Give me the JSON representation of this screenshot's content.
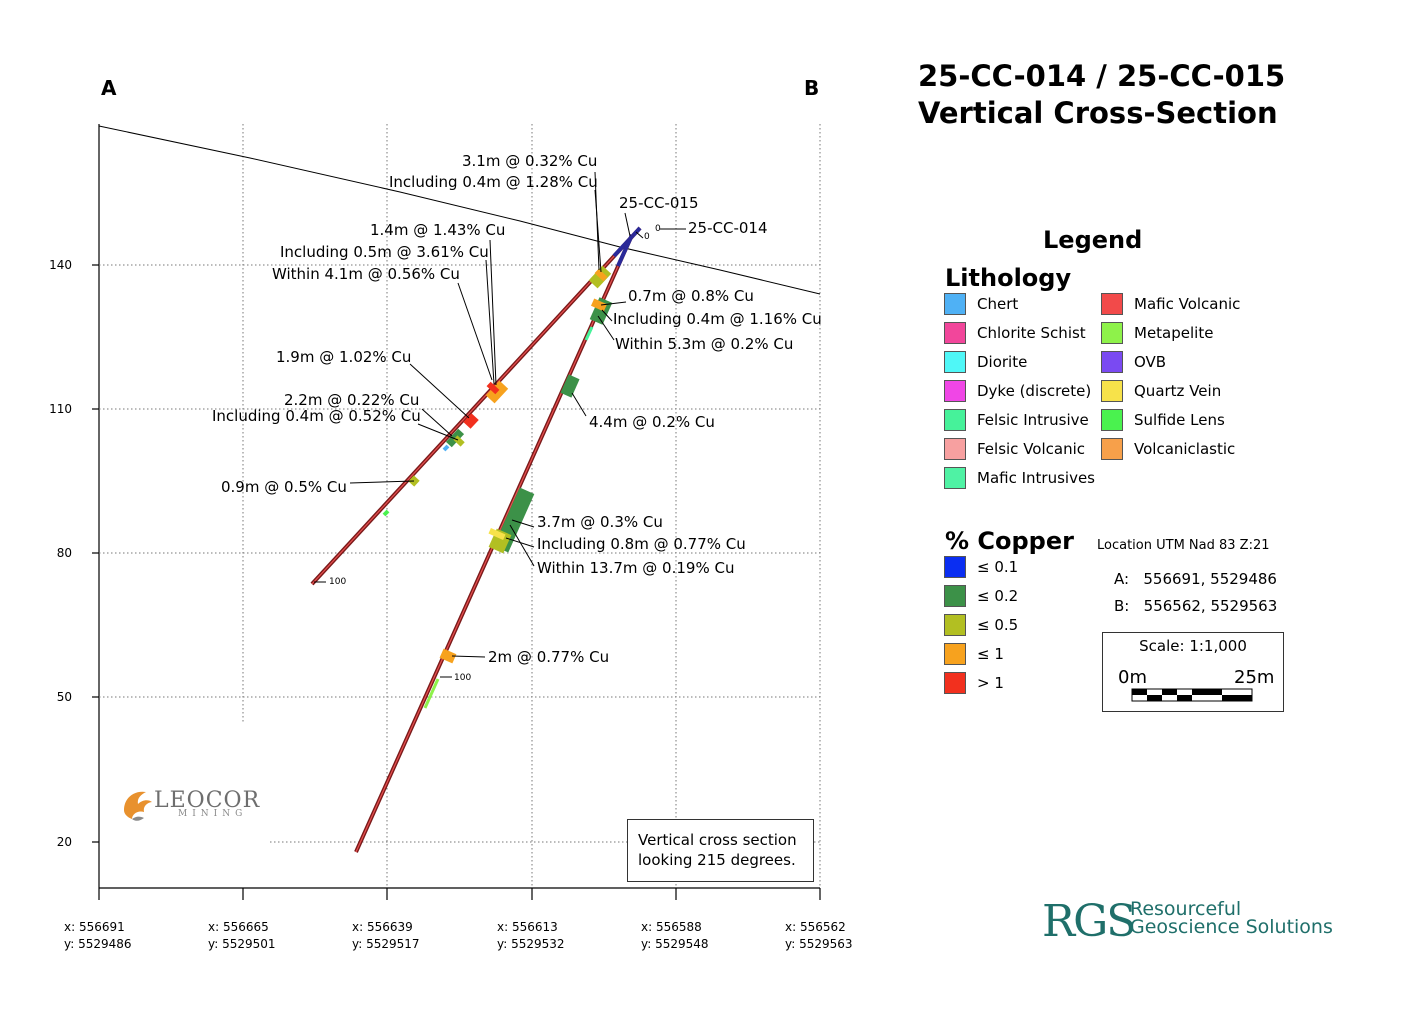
{
  "title": {
    "line1": "25-CC-014 / 25-CC-015",
    "line2": "Vertical Cross-Section"
  },
  "section_ends": {
    "a": "A",
    "b": "B"
  },
  "axis": {
    "y_ticks": [
      "140",
      "110",
      "80",
      "50",
      "20"
    ],
    "x_ticks": [
      {
        "x": "x: 556691",
        "y": "y: 5529486"
      },
      {
        "x": "x: 556665",
        "y": "y: 5529501"
      },
      {
        "x": "x: 556639",
        "y": "y: 5529517"
      },
      {
        "x": "x: 556613",
        "y": "y: 5529532"
      },
      {
        "x": "x: 556588",
        "y": "y: 5529548"
      },
      {
        "x": "x: 556562",
        "y": "y: 5529563"
      }
    ]
  },
  "holes": {
    "hole_015": "25-CC-015",
    "hole_014": "25-CC-014",
    "collar_depth_a": "0",
    "collar_depth_b": "0",
    "end_depth_a": "100",
    "end_depth_b": "100"
  },
  "intercepts": [
    "3.1m @ 0.32% Cu",
    "Including 0.4m @ 1.28% Cu",
    "1.4m @ 1.43% Cu",
    "Including 0.5m @ 3.61% Cu",
    "Within 4.1m @ 0.56% Cu",
    "0.7m @ 0.8% Cu",
    "Including 0.4m @ 1.16% Cu",
    "Within 5.3m @ 0.2% Cu",
    "1.9m @ 1.02% Cu",
    "2.2m @ 0.22% Cu",
    "Including 0.4m @ 0.52% Cu",
    "4.4m @ 0.2% Cu",
    "0.9m @ 0.5% Cu",
    "3.7m @ 0.3% Cu",
    "Including 0.8m @ 0.77% Cu",
    "Within 13.7m @ 0.19% Cu",
    "2m @ 0.77% Cu"
  ],
  "legend": {
    "title": "Legend",
    "lithology_title": "Lithology",
    "lithology": [
      {
        "label": "Chert",
        "color": "#4fb1f5"
      },
      {
        "label": "Chlorite Schist",
        "color": "#f2469b"
      },
      {
        "label": "Diorite",
        "color": "#4ff7f7"
      },
      {
        "label": "Dyke (discrete)",
        "color": "#f046e6"
      },
      {
        "label": "Felsic Intrusive",
        "color": "#46f29a"
      },
      {
        "label": "Felsic Volcanic",
        "color": "#f7a0a0"
      },
      {
        "label": "Mafic Intrusives",
        "color": "#4ff2a4"
      },
      {
        "label": "Mafic Volcanic",
        "color": "#f24a4a"
      },
      {
        "label": "Metapelite",
        "color": "#8ef24a"
      },
      {
        "label": "OVB",
        "color": "#7a4af2"
      },
      {
        "label": "Quartz Vein",
        "color": "#f7e24a"
      },
      {
        "label": "Sulfide Lens",
        "color": "#4af24f"
      },
      {
        "label": "Volcaniclastic",
        "color": "#f7a04a"
      }
    ],
    "copper_title": "% Copper",
    "copper": [
      {
        "label": "≤ 0.1",
        "color": "#0a2ef2"
      },
      {
        "label": "≤ 0.2",
        "color": "#3c9148"
      },
      {
        "label": "≤ 0.5",
        "color": "#b2bf22"
      },
      {
        "label": "≤ 1",
        "color": "#f7a21e"
      },
      {
        "label": "> 1",
        "color": "#f2301e"
      }
    ]
  },
  "location": {
    "title": "Location UTM Nad 83 Z:21",
    "a": "A:   556691, 5529486",
    "b": "B:   556562, 5529563"
  },
  "scale": {
    "label": "Scale: 1:1,000",
    "left": "0m",
    "right": "25m"
  },
  "note": {
    "line1": "Vertical cross section",
    "line2": "looking 215 degrees."
  },
  "logos": {
    "leocor_main": "LEOCOR",
    "leocor_sub": "MINING",
    "rgs_mark": "RGS",
    "rgs_line1": "Resourceful",
    "rgs_line2": "Geoscience Solutions",
    "rgs_color": "#1f6f6a"
  }
}
